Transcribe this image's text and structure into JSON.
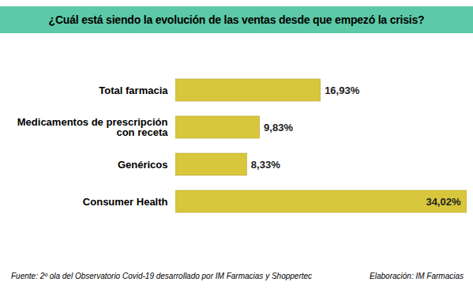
{
  "chart_data": {
    "type": "bar",
    "orientation": "horizontal",
    "title": "¿Cuál está siendo la evolución de las ventas desde que empezó la crisis?",
    "categories": [
      "Total farmacia",
      "Medicamentos de prescripción con receta",
      "Genéricos",
      "Consumer Health"
    ],
    "values": [
      16.93,
      9.83,
      8.33,
      34.02
    ],
    "value_labels": [
      "16,93%",
      "9,83%",
      "8,33%",
      "34,02%"
    ],
    "data_labels": true,
    "tick_labels": "y",
    "grid": false,
    "color": "#d8c63c",
    "annotations": [
      "Fuente: 2º ola del Observatorio Covid-19 desarrollado por IM Farmacias y Shoppertec",
      "Elaboración: IM Farmacias"
    ]
  }
}
